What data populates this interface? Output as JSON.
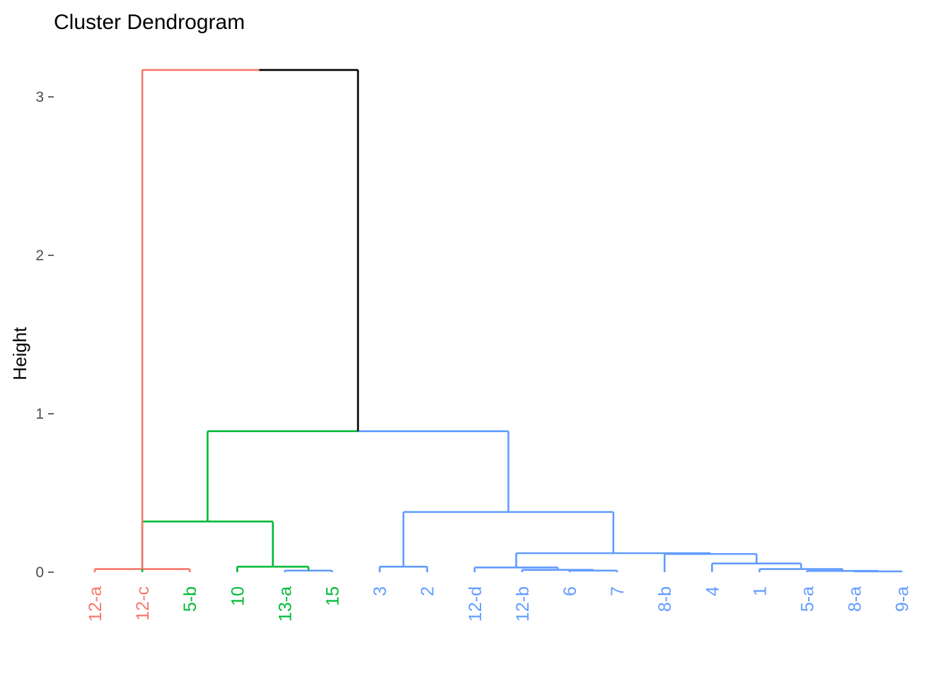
{
  "chart_data": {
    "type": "dendrogram",
    "title": "Cluster Dendrogram",
    "xlabel": "",
    "ylabel": "Height",
    "ylim": [
      0,
      3.2
    ],
    "yticks": [
      0,
      1,
      2,
      3
    ],
    "colors": {
      "cluster_1": "#F8766D",
      "cluster_2": "#00BA38",
      "cluster_3": "#619CFF",
      "root": "#000000"
    },
    "leaves": [
      {
        "label": "12-a",
        "cluster": 1
      },
      {
        "label": "12-c",
        "cluster": 1
      },
      {
        "label": "5-b",
        "cluster": 2
      },
      {
        "label": "10",
        "cluster": 2
      },
      {
        "label": "13-a",
        "cluster": 2
      },
      {
        "label": "15",
        "cluster": 2
      },
      {
        "label": "3",
        "cluster": 3
      },
      {
        "label": "2",
        "cluster": 3
      },
      {
        "label": "12-d",
        "cluster": 3
      },
      {
        "label": "12-b",
        "cluster": 3
      },
      {
        "label": "6",
        "cluster": 3
      },
      {
        "label": "7",
        "cluster": 3
      },
      {
        "label": "8-b",
        "cluster": 3
      },
      {
        "label": "4",
        "cluster": 3
      },
      {
        "label": "1",
        "cluster": 3
      },
      {
        "label": "5-a",
        "cluster": 3
      },
      {
        "label": "8-a",
        "cluster": 3
      },
      {
        "label": "9-a",
        "cluster": 3
      }
    ],
    "merges": [
      {
        "left": 17,
        "right": 18,
        "height": 0.005,
        "color": "cluster_3"
      },
      {
        "left": 16,
        "right": -1,
        "height": 0.008,
        "color": "cluster_3"
      },
      {
        "left": 11,
        "right": 12,
        "height": 0.01,
        "color": "cluster_3"
      },
      {
        "left": 5,
        "right": 6,
        "height": 0.01,
        "color": "cluster_3"
      },
      {
        "left": 10,
        "right": -3,
        "height": 0.015,
        "color": "cluster_3"
      },
      {
        "left": 15,
        "right": -2,
        "height": 0.02,
        "color": "cluster_3"
      },
      {
        "left": 1,
        "right": 3,
        "height": 0.02,
        "color": "cluster_1"
      },
      {
        "left": 9,
        "right": -5,
        "height": 0.03,
        "color": "cluster_3"
      },
      {
        "left": 8,
        "right": 7,
        "height": 0.035,
        "color": "cluster_3"
      },
      {
        "left": 4,
        "right": -4,
        "height": 0.035,
        "color": "cluster_2"
      },
      {
        "left": 14,
        "right": -6,
        "height": 0.055,
        "color": "cluster_3"
      },
      {
        "left": 13,
        "right": -11,
        "height": 0.115,
        "color": "cluster_3"
      },
      {
        "left": -8,
        "right": -12,
        "height": 0.12,
        "color": "cluster_3"
      },
      {
        "left": 2,
        "right": -10,
        "height": 0.32,
        "color": "cluster_2"
      },
      {
        "left": -9,
        "right": -13,
        "height": 0.38,
        "color": "cluster_3"
      },
      {
        "left": -14,
        "right": -15,
        "height": 0.89,
        "color": "mixed"
      },
      {
        "left": -7,
        "right": -16,
        "height": 3.17,
        "color": "mixed"
      }
    ],
    "merge_note_ignore": ""
  }
}
